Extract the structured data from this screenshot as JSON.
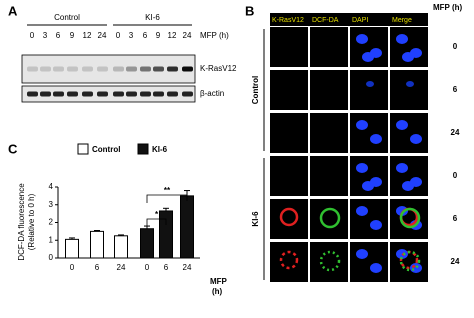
{
  "panel_a": {
    "label": "A",
    "groups": [
      "Control",
      "KI-6"
    ],
    "lanes": [
      "0",
      "3",
      "6",
      "9",
      "12",
      "24",
      "0",
      "3",
      "6",
      "9",
      "12",
      "24"
    ],
    "lane_unit": "MFP (h)",
    "rows": [
      "K-RasV12",
      "β-actin"
    ]
  },
  "panel_b": {
    "label": "B",
    "columns": [
      "K-RasV12",
      "DCF-DA",
      "DAPI",
      "Merge"
    ],
    "time_unit": "MFP (h)",
    "groups": [
      "Control",
      "KI-6"
    ],
    "times": [
      "0",
      "6",
      "24",
      "0",
      "6",
      "24"
    ]
  },
  "chart_data": {
    "type": "bar",
    "panel_label": "C",
    "y_label": [
      "DCF-DA fluorescence",
      "(Relative to 0 h)"
    ],
    "x_label": [
      "MFP",
      "(h)"
    ],
    "categories": [
      "0",
      "6",
      "24",
      "0",
      "6",
      "24"
    ],
    "series": [
      {
        "name": "Control",
        "color": "#ffffff",
        "values": [
          1.05,
          1.5,
          1.25,
          null,
          null,
          null
        ],
        "errors": [
          0.08,
          0.05,
          0.05,
          null,
          null,
          null
        ]
      },
      {
        "name": "KI-6",
        "color": "#111111",
        "values": [
          null,
          null,
          null,
          1.65,
          2.65,
          3.5
        ],
        "errors": [
          null,
          null,
          null,
          0.15,
          0.15,
          0.3
        ]
      }
    ],
    "ylim": [
      0,
      4
    ],
    "yticks": [
      0,
      1,
      2,
      3,
      4
    ],
    "annotations": [
      "*",
      "**"
    ]
  }
}
